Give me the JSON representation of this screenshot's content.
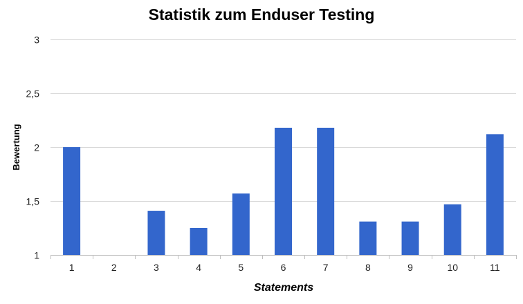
{
  "chart_data": {
    "type": "bar",
    "title": "Statistik zum Enduser Testing",
    "xlabel": "Statements",
    "ylabel": "Bewertung",
    "categories": [
      "1",
      "2",
      "3",
      "4",
      "5",
      "6",
      "7",
      "8",
      "9",
      "10",
      "11"
    ],
    "values": [
      2.0,
      1.0,
      1.41,
      1.25,
      1.57,
      2.18,
      2.18,
      1.31,
      1.31,
      1.47,
      2.12
    ],
    "ylim": [
      1,
      3
    ],
    "yticks": [
      1,
      1.5,
      2,
      2.5,
      3
    ],
    "ytick_labels": [
      "1",
      "1,5",
      "2",
      "2,5",
      "3"
    ],
    "grid": true,
    "legend": "none",
    "bar_color": "#3366CC",
    "grid_color": "#D9D9D9",
    "axis_color": "#BFBFBF"
  }
}
